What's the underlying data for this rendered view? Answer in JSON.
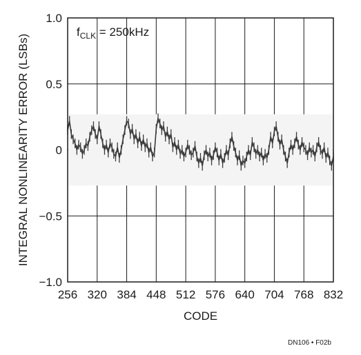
{
  "chart_data": {
    "type": "line",
    "title": "",
    "xlabel": "CODE",
    "ylabel": "INTEGRAL NONLINEARITY ERROR (LSBs)",
    "xlim": [
      256,
      832
    ],
    "ylim": [
      -1.0,
      1.0
    ],
    "x_ticks": [
      256,
      320,
      384,
      448,
      512,
      576,
      640,
      704,
      768,
      832
    ],
    "x_tick_labels": [
      "256",
      "320",
      "384",
      "448",
      "512",
      "576",
      "640",
      "704",
      "768",
      "832"
    ],
    "y_ticks": [
      1.0,
      0.5,
      0,
      -0.5,
      -1.0
    ],
    "y_tick_labels": [
      "1.0",
      "0.5",
      "0",
      "−0.5",
      "−1.0"
    ],
    "grid": true,
    "annotation": {
      "main": "f",
      "sub": "CLK",
      "rest": " = 250kHz"
    },
    "series": [
      {
        "color": "#3a3a3a",
        "points": [
          [
            256,
            0.15
          ],
          [
            260,
            0.22
          ],
          [
            264,
            0.12
          ],
          [
            268,
            0.08
          ],
          [
            272,
            0.05
          ],
          [
            276,
            0.0
          ],
          [
            280,
            0.04
          ],
          [
            284,
            0.02
          ],
          [
            288,
            -0.03
          ],
          [
            292,
            0.0
          ],
          [
            296,
            0.05
          ],
          [
            300,
            0.03
          ],
          [
            304,
            0.1
          ],
          [
            308,
            0.15
          ],
          [
            312,
            0.18
          ],
          [
            316,
            0.12
          ],
          [
            320,
            0.08
          ],
          [
            324,
            0.18
          ],
          [
            328,
            0.12
          ],
          [
            332,
            0.05
          ],
          [
            336,
            0.0
          ],
          [
            340,
            0.04
          ],
          [
            344,
            -0.02
          ],
          [
            348,
            0.05
          ],
          [
            352,
            0.02
          ],
          [
            356,
            -0.03
          ],
          [
            360,
            -0.05
          ],
          [
            364,
            0.02
          ],
          [
            368,
            -0.06
          ],
          [
            372,
            0.0
          ],
          [
            376,
            0.08
          ],
          [
            380,
            0.15
          ],
          [
            384,
            0.22
          ],
          [
            388,
            0.2
          ],
          [
            392,
            0.12
          ],
          [
            396,
            0.16
          ],
          [
            400,
            0.08
          ],
          [
            404,
            0.12
          ],
          [
            408,
            0.05
          ],
          [
            412,
            0.1
          ],
          [
            416,
            0.03
          ],
          [
            420,
            0.08
          ],
          [
            424,
            0.02
          ],
          [
            428,
            0.05
          ],
          [
            432,
            -0.02
          ],
          [
            436,
            0.02
          ],
          [
            440,
            -0.05
          ],
          [
            444,
            -0.02
          ],
          [
            448,
            0.16
          ],
          [
            452,
            0.24
          ],
          [
            456,
            0.2
          ],
          [
            460,
            0.15
          ],
          [
            464,
            0.18
          ],
          [
            468,
            0.1
          ],
          [
            472,
            0.14
          ],
          [
            476,
            0.08
          ],
          [
            480,
            0.12
          ],
          [
            484,
            0.02
          ],
          [
            488,
            0.06
          ],
          [
            492,
            0.0
          ],
          [
            496,
            0.04
          ],
          [
            500,
            -0.03
          ],
          [
            504,
            0.0
          ],
          [
            508,
            -0.05
          ],
          [
            512,
            -0.02
          ],
          [
            516,
            0.04
          ],
          [
            520,
            0.0
          ],
          [
            524,
            -0.04
          ],
          [
            528,
            -0.02
          ],
          [
            532,
            0.03
          ],
          [
            536,
            -0.05
          ],
          [
            540,
            -0.1
          ],
          [
            544,
            -0.06
          ],
          [
            548,
            -0.12
          ],
          [
            552,
            -0.04
          ],
          [
            556,
            0.0
          ],
          [
            560,
            -0.05
          ],
          [
            564,
            -0.02
          ],
          [
            568,
            -0.08
          ],
          [
            572,
            -0.04
          ],
          [
            576,
            0.02
          ],
          [
            580,
            -0.02
          ],
          [
            584,
            -0.08
          ],
          [
            588,
            -0.03
          ],
          [
            592,
            -0.1
          ],
          [
            596,
            -0.06
          ],
          [
            600,
            0.0
          ],
          [
            604,
            -0.04
          ],
          [
            608,
            0.05
          ],
          [
            612,
            0.1
          ],
          [
            616,
            0.03
          ],
          [
            620,
            -0.02
          ],
          [
            624,
            -0.08
          ],
          [
            628,
            -0.04
          ],
          [
            632,
            -0.12
          ],
          [
            636,
            -0.08
          ],
          [
            640,
            -0.1
          ],
          [
            644,
            -0.05
          ],
          [
            648,
            0.0
          ],
          [
            652,
            -0.04
          ],
          [
            656,
            0.06
          ],
          [
            660,
            0.02
          ],
          [
            664,
            -0.03
          ],
          [
            668,
            0.0
          ],
          [
            672,
            -0.05
          ],
          [
            676,
            -0.02
          ],
          [
            680,
            -0.08
          ],
          [
            684,
            -0.03
          ],
          [
            688,
            -0.06
          ],
          [
            692,
            0.0
          ],
          [
            696,
            0.1
          ],
          [
            700,
            0.05
          ],
          [
            704,
            0.14
          ],
          [
            708,
            0.18
          ],
          [
            712,
            0.1
          ],
          [
            716,
            0.04
          ],
          [
            720,
            0.08
          ],
          [
            724,
            0.0
          ],
          [
            728,
            -0.05
          ],
          [
            732,
            -0.1
          ],
          [
            736,
            -0.02
          ],
          [
            740,
            0.04
          ],
          [
            744,
            0.0
          ],
          [
            748,
            0.05
          ],
          [
            752,
            0.1
          ],
          [
            756,
            0.04
          ],
          [
            760,
            0.0
          ],
          [
            764,
            0.06
          ],
          [
            768,
            0.02
          ],
          [
            772,
            0.0
          ],
          [
            776,
            -0.04
          ],
          [
            780,
            0.02
          ],
          [
            784,
            -0.02
          ],
          [
            788,
            0.0
          ],
          [
            792,
            -0.05
          ],
          [
            796,
            0.02
          ],
          [
            800,
            0.06
          ],
          [
            804,
            0.0
          ],
          [
            808,
            -0.03
          ],
          [
            812,
            0.02
          ],
          [
            816,
            -0.06
          ],
          [
            820,
            -0.02
          ],
          [
            824,
            -0.08
          ],
          [
            828,
            -0.12
          ],
          [
            832,
            -0.05
          ]
        ]
      }
    ]
  },
  "figure_code": "DN106 • F02b"
}
